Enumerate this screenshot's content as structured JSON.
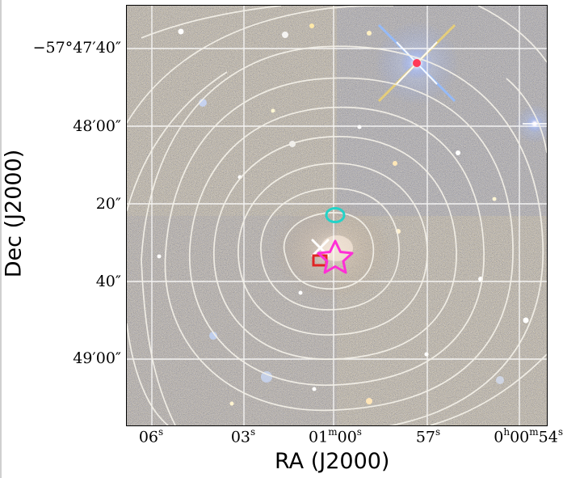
{
  "axes": {
    "xlabel": "RA (J2000)",
    "ylabel": "Dec (J2000)",
    "y_ticks": [
      "−57°47′40″",
      "48′00″",
      "20″",
      "40″",
      "49′00″"
    ],
    "x_ticks": [
      {
        "main": "06",
        "sup": "s"
      },
      {
        "main": "03",
        "sup": "s"
      },
      {
        "main": "01",
        "sup": "m",
        "main2": "00",
        "sup2": "s"
      },
      {
        "main": "57",
        "sup": "s"
      },
      {
        "main": "0",
        "sup": "h",
        "main2": "00",
        "sup2": "m",
        "main3": "54",
        "sup3": "s"
      }
    ]
  },
  "image": {
    "type": "optical color composite with contour overlay",
    "grid": true,
    "contours": "white",
    "colors": {
      "background": "#4d4838",
      "grid": "#ffffff",
      "contour": "#f3f0e8",
      "star_marker": "#ff2fd6",
      "circle_marker": "#23d3c8",
      "square_marker": "#e02424",
      "x_marker": "#ffffff",
      "bright_star": "#ffffff"
    },
    "markers": [
      "star-marker",
      "circle-marker",
      "square-marker",
      "x-marker"
    ]
  }
}
